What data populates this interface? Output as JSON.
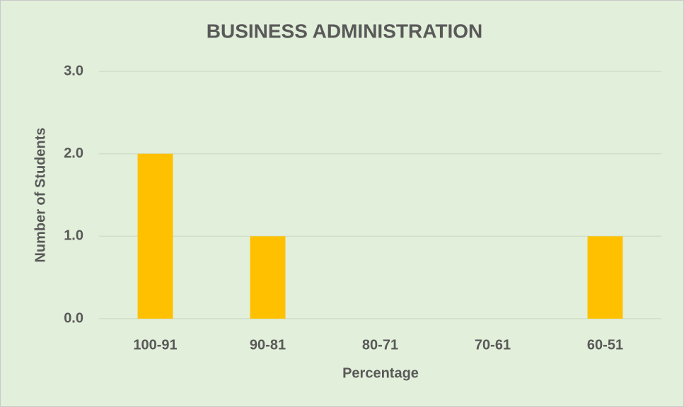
{
  "chart_data": {
    "type": "bar",
    "title": "BUSINESS ADMINISTRATION",
    "x_label": "Percentage",
    "y_label": "Number of Students",
    "categories": [
      "100-91",
      "90-81",
      "80-71",
      "70-61",
      "60-51"
    ],
    "values": [
      2,
      1,
      0,
      0,
      1
    ],
    "color": "#ffc000",
    "ylim": [
      0,
      3
    ],
    "yticks": [
      {
        "value": 0,
        "label": "0.0"
      },
      {
        "value": 1,
        "label": "1.0"
      },
      {
        "value": 2,
        "label": "2.0"
      },
      {
        "value": 3,
        "label": "3.0"
      }
    ],
    "grid": true
  }
}
